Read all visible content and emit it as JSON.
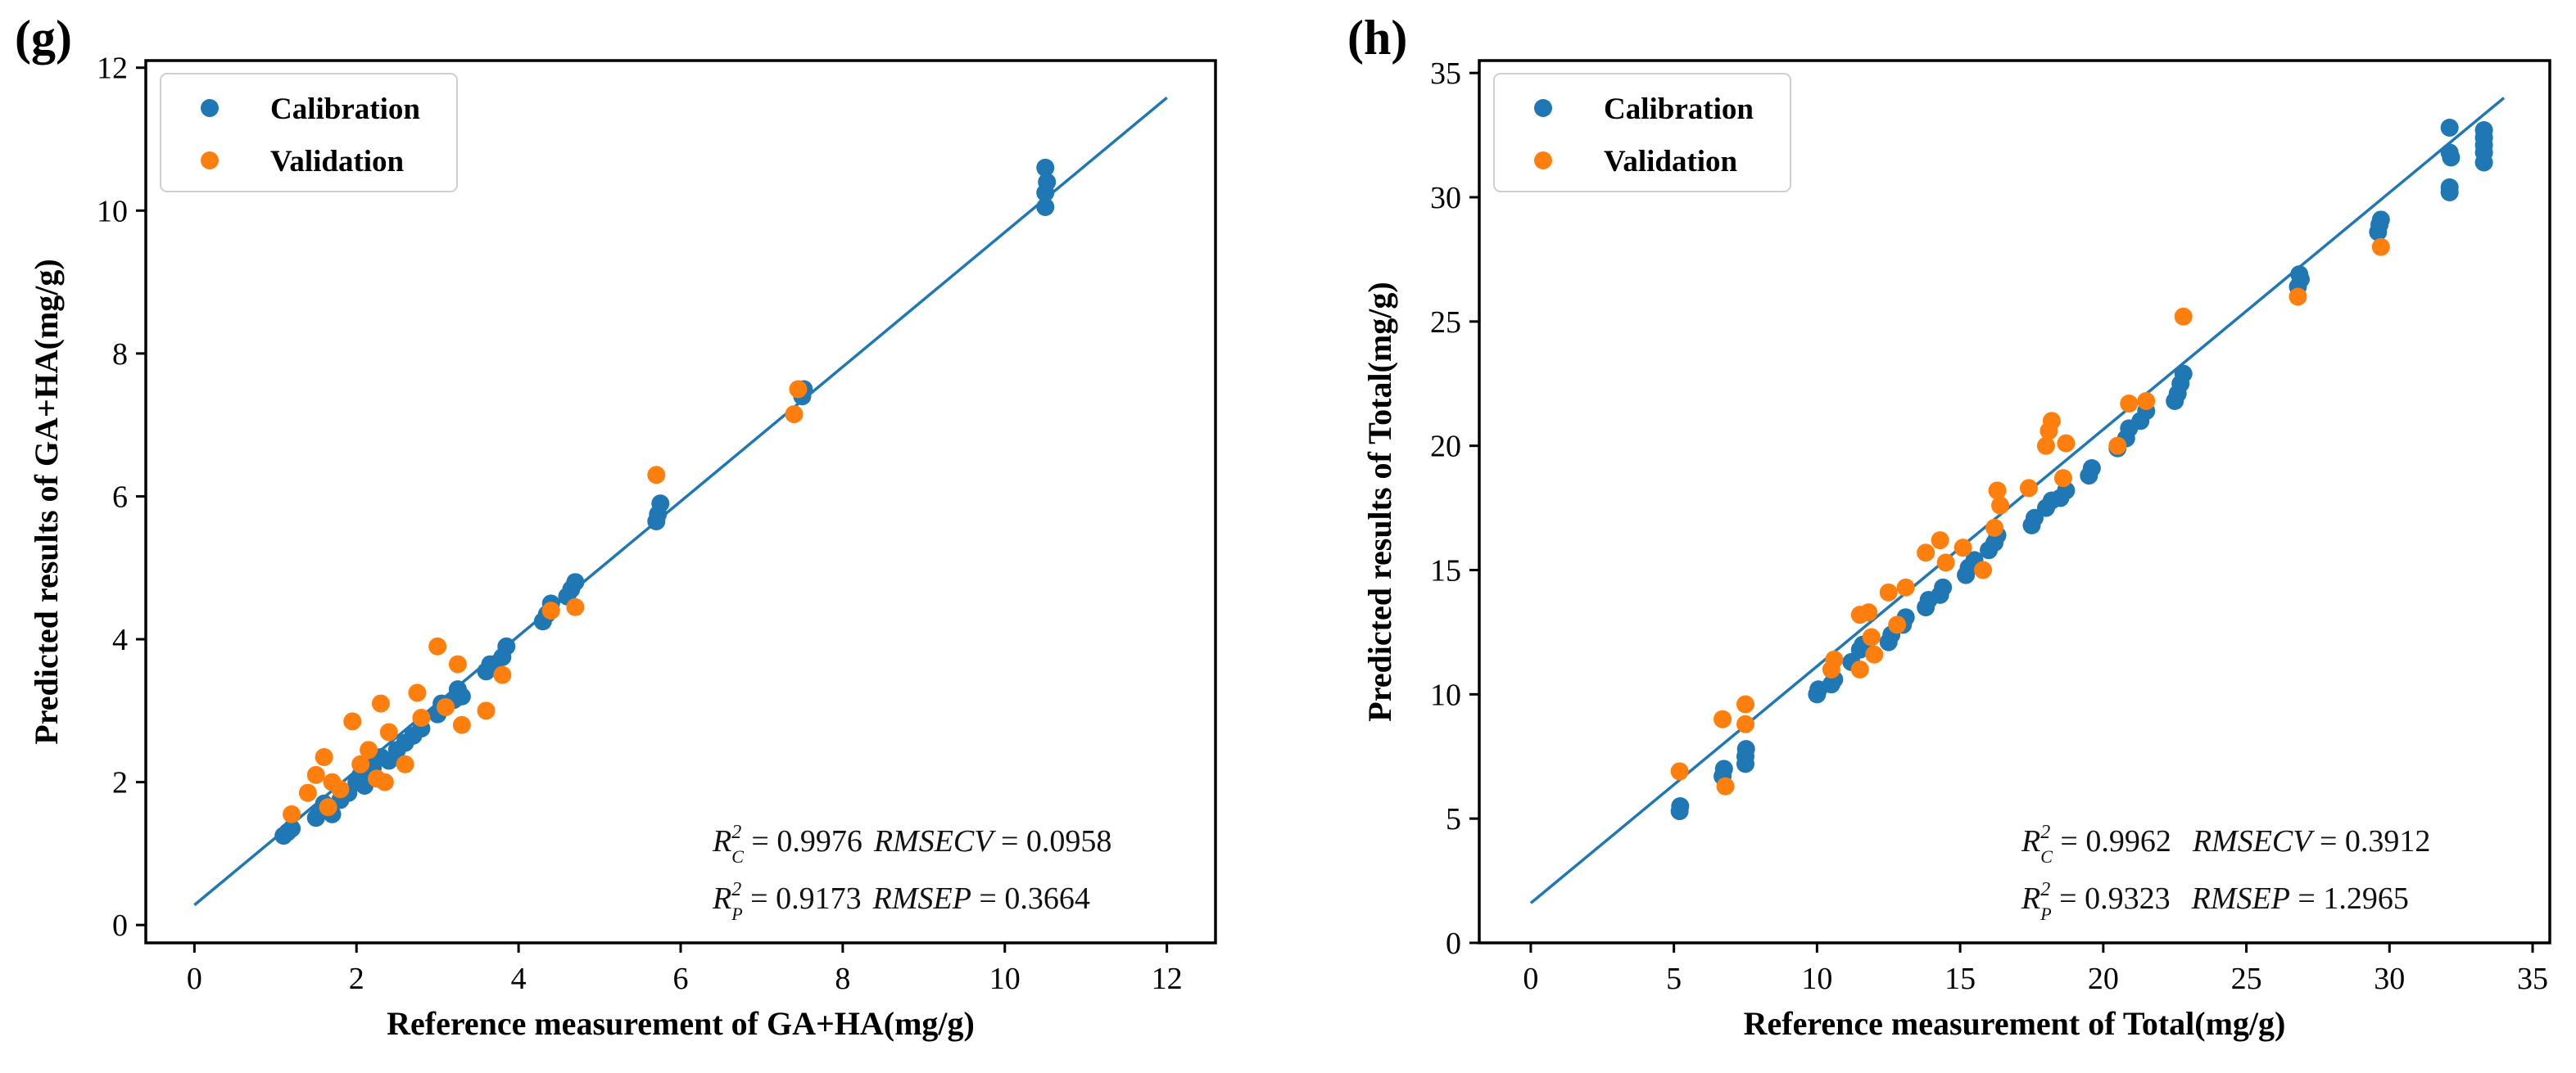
{
  "colors": {
    "calibration": "#1f77b4",
    "validation": "#ff7f0e",
    "fit_line": "#1f77b4"
  },
  "chart_data": [
    {
      "type": "scatter",
      "panel_label": "(g)",
      "xlabel": "Reference measurement of GA+HA(mg/g)",
      "ylabel": "Predicted results of GA+HA(mg/g)",
      "xlim": [
        -0.6,
        12.6
      ],
      "ylim": [
        -0.25,
        12.1
      ],
      "xticks": [
        0,
        2,
        4,
        6,
        8,
        10,
        12
      ],
      "yticks": [
        0,
        2,
        4,
        6,
        8,
        10,
        12
      ],
      "legend": {
        "position": "top-left",
        "entries": [
          "Calibration",
          "Validation"
        ]
      },
      "fit_line": {
        "x": [
          0,
          12
        ],
        "y": [
          0.28,
          11.58
        ]
      },
      "stats": {
        "line1": {
          "r2_label": "R",
          "r2_sup": "2",
          "r2_sub": "C",
          "r2_value": " = 0.9976",
          "metric": "RMSECV",
          "metric_value": " = 0.0958"
        },
        "line2": {
          "r2_label": "R",
          "r2_sup": "2",
          "r2_sub": "P",
          "r2_value": " = 0.9173",
          "metric": "RMSEP",
          "metric_value": " = 0.3664"
        }
      },
      "series": [
        {
          "name": "Calibration",
          "points": [
            [
              1.1,
              1.25
            ],
            [
              1.15,
              1.3
            ],
            [
              1.2,
              1.35
            ],
            [
              1.5,
              1.5
            ],
            [
              1.55,
              1.6
            ],
            [
              1.6,
              1.7
            ],
            [
              1.7,
              1.55
            ],
            [
              1.8,
              1.75
            ],
            [
              1.9,
              1.85
            ],
            [
              2.0,
              2.0
            ],
            [
              2.05,
              2.1
            ],
            [
              2.1,
              1.95
            ],
            [
              2.2,
              2.2
            ],
            [
              2.3,
              2.35
            ],
            [
              2.4,
              2.3
            ],
            [
              2.5,
              2.45
            ],
            [
              2.6,
              2.55
            ],
            [
              2.7,
              2.65
            ],
            [
              2.8,
              2.75
            ],
            [
              3.0,
              2.95
            ],
            [
              3.05,
              3.1
            ],
            [
              3.1,
              3.05
            ],
            [
              3.2,
              3.15
            ],
            [
              3.25,
              3.3
            ],
            [
              3.3,
              3.2
            ],
            [
              3.6,
              3.55
            ],
            [
              3.65,
              3.65
            ],
            [
              3.7,
              3.6
            ],
            [
              3.8,
              3.75
            ],
            [
              3.85,
              3.9
            ],
            [
              4.3,
              4.25
            ],
            [
              4.35,
              4.35
            ],
            [
              4.4,
              4.5
            ],
            [
              4.6,
              4.6
            ],
            [
              4.65,
              4.7
            ],
            [
              4.7,
              4.8
            ],
            [
              5.7,
              5.65
            ],
            [
              5.72,
              5.75
            ],
            [
              5.75,
              5.9
            ],
            [
              7.5,
              7.4
            ],
            [
              7.52,
              7.5
            ],
            [
              10.5,
              10.05
            ],
            [
              10.5,
              10.25
            ],
            [
              10.52,
              10.4
            ],
            [
              10.5,
              10.6
            ]
          ]
        },
        {
          "name": "Validation",
          "points": [
            [
              1.2,
              1.55
            ],
            [
              1.4,
              1.85
            ],
            [
              1.5,
              2.1
            ],
            [
              1.6,
              2.35
            ],
            [
              1.65,
              1.65
            ],
            [
              1.7,
              2.0
            ],
            [
              1.8,
              1.9
            ],
            [
              1.95,
              2.85
            ],
            [
              2.05,
              2.25
            ],
            [
              2.15,
              2.45
            ],
            [
              2.25,
              2.05
            ],
            [
              2.3,
              3.1
            ],
            [
              2.35,
              2.0
            ],
            [
              2.4,
              2.7
            ],
            [
              2.6,
              2.25
            ],
            [
              2.75,
              3.25
            ],
            [
              2.8,
              2.9
            ],
            [
              3.0,
              3.9
            ],
            [
              3.1,
              3.05
            ],
            [
              3.25,
              3.65
            ],
            [
              3.3,
              2.8
            ],
            [
              3.6,
              3.0
            ],
            [
              3.8,
              3.5
            ],
            [
              4.4,
              4.4
            ],
            [
              4.7,
              4.45
            ],
            [
              5.7,
              6.3
            ],
            [
              7.4,
              7.15
            ],
            [
              7.45,
              7.5
            ]
          ]
        }
      ]
    },
    {
      "type": "scatter",
      "panel_label": "(h)",
      "xlabel": "Reference measurement of Total(mg/g)",
      "ylabel": "Predicted results of Total(mg/g)",
      "xlim": [
        -1.8,
        35.6
      ],
      "ylim": [
        0,
        35.5
      ],
      "xticks": [
        0,
        5,
        10,
        15,
        20,
        25,
        30,
        35
      ],
      "yticks": [
        0,
        5,
        10,
        15,
        20,
        25,
        30,
        35
      ],
      "legend": {
        "position": "top-left",
        "entries": [
          "Calibration",
          "Validation"
        ]
      },
      "fit_line": {
        "x": [
          0,
          34
        ],
        "y": [
          1.6,
          34.0
        ]
      },
      "stats": {
        "line1": {
          "r2_label": "R",
          "r2_sup": "2",
          "r2_sub": "C",
          "r2_value": " = 0.9962",
          "metric": "RMSECV",
          "metric_value": " = 0.3912"
        },
        "line2": {
          "r2_label": "R",
          "r2_sup": "2",
          "r2_sub": "P",
          "r2_value": " = 0.9323",
          "metric": "RMSEP",
          "metric_value": " = 1.2965"
        }
      },
      "series": [
        {
          "name": "Calibration",
          "points": [
            [
              5.2,
              5.3
            ],
            [
              5.22,
              5.5
            ],
            [
              6.7,
              6.7
            ],
            [
              6.75,
              7.0
            ],
            [
              7.5,
              7.2
            ],
            [
              7.5,
              7.5
            ],
            [
              7.52,
              7.8
            ],
            [
              10.0,
              10.0
            ],
            [
              10.05,
              10.2
            ],
            [
              10.5,
              10.4
            ],
            [
              10.6,
              10.6
            ],
            [
              11.2,
              11.3
            ],
            [
              11.5,
              11.8
            ],
            [
              11.6,
              12.0
            ],
            [
              12.5,
              12.1
            ],
            [
              12.6,
              12.4
            ],
            [
              13.0,
              12.8
            ],
            [
              13.1,
              13.1
            ],
            [
              13.8,
              13.5
            ],
            [
              13.9,
              13.8
            ],
            [
              14.3,
              14.0
            ],
            [
              14.4,
              14.3
            ],
            [
              15.2,
              14.8
            ],
            [
              15.3,
              15.1
            ],
            [
              15.5,
              15.4
            ],
            [
              16.0,
              15.8
            ],
            [
              16.2,
              16.1
            ],
            [
              16.3,
              16.4
            ],
            [
              17.5,
              16.8
            ],
            [
              17.6,
              17.1
            ],
            [
              18.0,
              17.5
            ],
            [
              18.2,
              17.8
            ],
            [
              18.5,
              17.9
            ],
            [
              18.7,
              18.2
            ],
            [
              19.5,
              18.8
            ],
            [
              19.6,
              19.1
            ],
            [
              20.5,
              19.9
            ],
            [
              20.8,
              20.3
            ],
            [
              20.9,
              20.7
            ],
            [
              21.3,
              21.0
            ],
            [
              21.5,
              21.4
            ],
            [
              22.5,
              21.8
            ],
            [
              22.6,
              22.1
            ],
            [
              22.7,
              22.5
            ],
            [
              22.8,
              22.9
            ],
            [
              26.8,
              26.4
            ],
            [
              26.9,
              26.7
            ],
            [
              26.85,
              26.9
            ],
            [
              29.6,
              28.6
            ],
            [
              29.65,
              28.9
            ],
            [
              29.7,
              29.1
            ],
            [
              32.1,
              30.2
            ],
            [
              32.1,
              30.4
            ],
            [
              32.15,
              31.6
            ],
            [
              32.1,
              31.8
            ],
            [
              32.1,
              32.8
            ],
            [
              33.3,
              31.4
            ],
            [
              33.3,
              31.8
            ],
            [
              33.3,
              32.1
            ],
            [
              33.3,
              32.4
            ],
            [
              33.3,
              32.7
            ]
          ]
        },
        {
          "name": "Validation",
          "points": [
            [
              5.2,
              6.9
            ],
            [
              6.7,
              9.0
            ],
            [
              6.8,
              6.3
            ],
            [
              7.5,
              9.6
            ],
            [
              7.5,
              8.8
            ],
            [
              10.5,
              11.0
            ],
            [
              10.6,
              11.4
            ],
            [
              11.5,
              11.0
            ],
            [
              11.5,
              13.2
            ],
            [
              11.8,
              13.3
            ],
            [
              11.9,
              12.3
            ],
            [
              12.0,
              11.6
            ],
            [
              12.5,
              14.1
            ],
            [
              12.8,
              12.8
            ],
            [
              13.1,
              14.3
            ],
            [
              13.8,
              15.7
            ],
            [
              14.3,
              16.2
            ],
            [
              14.5,
              15.3
            ],
            [
              15.1,
              15.9
            ],
            [
              15.8,
              15.0
            ],
            [
              16.2,
              16.7
            ],
            [
              16.3,
              18.2
            ],
            [
              16.4,
              17.6
            ],
            [
              17.4,
              18.3
            ],
            [
              18.0,
              20.0
            ],
            [
              18.1,
              20.6
            ],
            [
              18.2,
              21.0
            ],
            [
              18.6,
              18.7
            ],
            [
              18.7,
              20.1
            ],
            [
              20.5,
              20.0
            ],
            [
              20.9,
              21.7
            ],
            [
              21.5,
              21.8
            ],
            [
              22.8,
              25.2
            ],
            [
              26.8,
              26.0
            ],
            [
              29.7,
              28.0
            ]
          ]
        }
      ]
    }
  ]
}
